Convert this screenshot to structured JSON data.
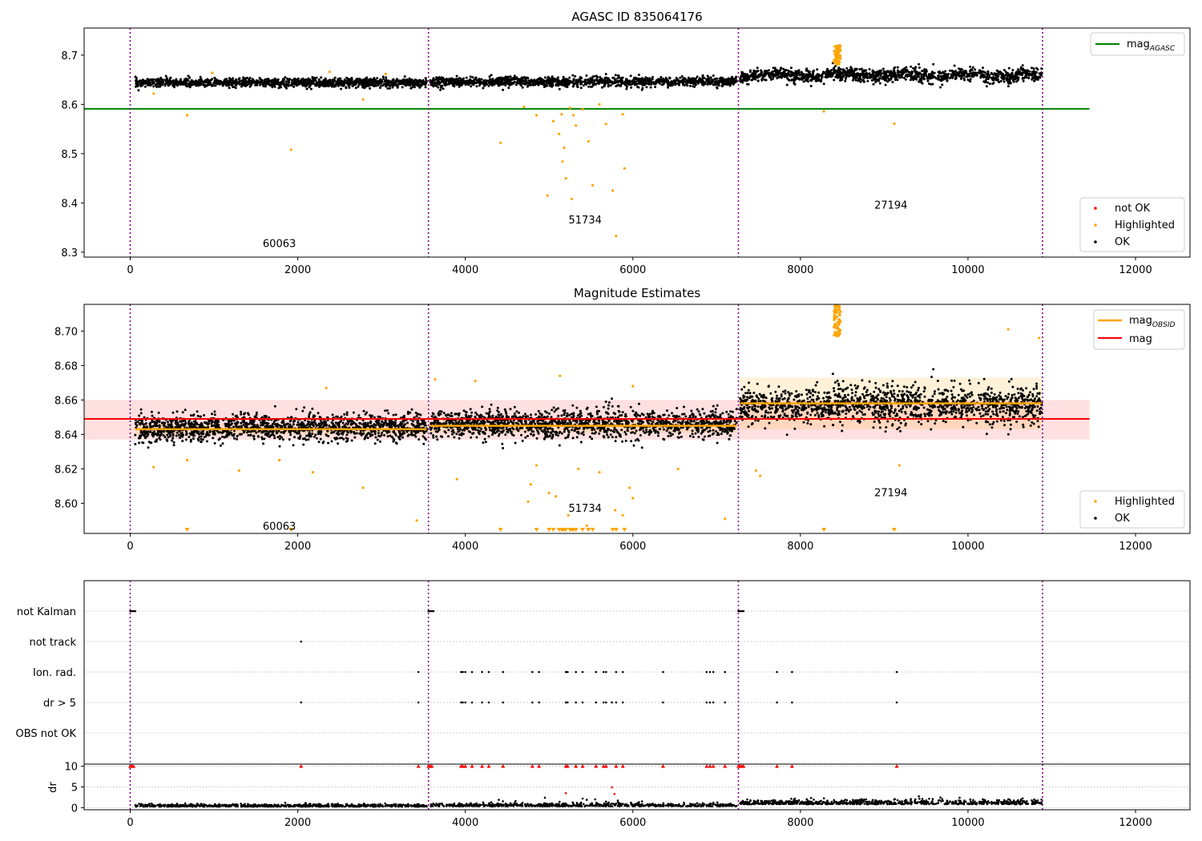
{
  "chart_data": [
    {
      "type": "scatter",
      "title": "AGASC ID 835064176",
      "xlim": [
        -550,
        12650
      ],
      "ylim": [
        8.29,
        8.755
      ],
      "xticks": [
        0,
        2000,
        4000,
        6000,
        8000,
        10000,
        12000
      ],
      "xtick_labels": [
        "0",
        "2000",
        "4000",
        "6000",
        "8000",
        "10000",
        "12000"
      ],
      "yticks": [
        8.3,
        8.4,
        8.5,
        8.6,
        8.7
      ],
      "ytick_labels": [
        "8.3",
        "8.4",
        "8.5",
        "8.6",
        "8.7"
      ],
      "vlines": [
        0,
        3560,
        7260,
        10890
      ],
      "segment_labels": [
        {
          "text": "60063",
          "x": 1780,
          "y": 8.317
        },
        {
          "text": "51734",
          "x": 5430,
          "y": 8.365
        },
        {
          "text": "27194",
          "x": 9080,
          "y": 8.395
        }
      ],
      "hline": {
        "name": "mag_AGASC",
        "y": 8.591,
        "x": [
          -550,
          11450
        ],
        "color": "#008000"
      },
      "segments": [
        {
          "x": [
            60,
            3540
          ],
          "mean": 8.644,
          "noise": 0.008,
          "drift": 0.0
        },
        {
          "x": [
            3580,
            7240
          ],
          "mean": 8.646,
          "noise": 0.009,
          "drift": 0.0
        },
        {
          "x": [
            7280,
            10880
          ],
          "mean": 8.659,
          "noise": 0.012,
          "drift": 0.003
        }
      ],
      "spike": {
        "x": [
          8400,
          8480
        ],
        "y": [
          8.68,
          8.72
        ]
      },
      "highlighted_points": [
        [
          280,
          8.622
        ],
        [
          680,
          8.578
        ],
        [
          1920,
          8.508
        ],
        [
          2780,
          8.61
        ],
        [
          4420,
          8.522
        ],
        [
          4700,
          8.595
        ],
        [
          4850,
          8.578
        ],
        [
          4980,
          8.415
        ],
        [
          5050,
          8.566
        ],
        [
          5120,
          8.54
        ],
        [
          5150,
          8.58
        ],
        [
          5160,
          8.484
        ],
        [
          5180,
          8.512
        ],
        [
          5200,
          8.45
        ],
        [
          5250,
          8.593
        ],
        [
          5270,
          8.408
        ],
        [
          5290,
          8.578
        ],
        [
          5320,
          8.557
        ],
        [
          5400,
          8.59
        ],
        [
          5470,
          8.525
        ],
        [
          5520,
          8.436
        ],
        [
          5600,
          8.6
        ],
        [
          5680,
          8.56
        ],
        [
          5760,
          8.425
        ],
        [
          5800,
          8.333
        ],
        [
          5880,
          8.58
        ],
        [
          5900,
          8.47
        ],
        [
          8280,
          8.586
        ],
        [
          9120,
          8.561
        ],
        [
          980,
          8.664
        ],
        [
          2380,
          8.666
        ],
        [
          3050,
          8.662
        ]
      ],
      "legend": {
        "position": "lower-right",
        "entries": [
          "not OK",
          "Highlighted",
          "OK"
        ]
      },
      "top_legend": {
        "position": "upper-right",
        "entries": [
          "mag_AGASC"
        ]
      },
      "colors": {
        "ok": "#000000",
        "highlighted": "#ffa500",
        "not_ok": "#ff0000",
        "vline": "#800080"
      }
    },
    {
      "type": "scatter",
      "title": "Magnitude Estimates",
      "xlim": [
        -550,
        12650
      ],
      "ylim": [
        8.5825,
        8.7155
      ],
      "xticks": [
        0,
        2000,
        4000,
        6000,
        8000,
        10000,
        12000
      ],
      "xtick_labels": [
        "0",
        "2000",
        "4000",
        "6000",
        "8000",
        "10000",
        "12000"
      ],
      "yticks": [
        8.6,
        8.62,
        8.64,
        8.66,
        8.68,
        8.7
      ],
      "ytick_labels": [
        "8.60",
        "8.62",
        "8.64",
        "8.66",
        "8.68",
        "8.70"
      ],
      "vlines": [
        0,
        3560,
        7260,
        10890
      ],
      "segment_labels": [
        {
          "text": "60063",
          "x": 1780,
          "y": 8.5865
        },
        {
          "text": "51734",
          "x": 5430,
          "y": 8.597
        },
        {
          "text": "27194",
          "x": 9080,
          "y": 8.606
        }
      ],
      "mag": {
        "name": "mag",
        "y": 8.649,
        "band": [
          8.637,
          8.66
        ],
        "x": [
          -550,
          11450
        ],
        "color": "#ff0000"
      },
      "mag_obsid": [
        {
          "x": [
            60,
            3540
          ],
          "y": 8.643,
          "band": [
            8.64,
            8.646
          ]
        },
        {
          "x": [
            3580,
            7240
          ],
          "y": 8.645,
          "band": [
            8.641,
            8.649
          ]
        },
        {
          "x": [
            7280,
            10880
          ],
          "y": 8.658,
          "band": [
            8.643,
            8.673
          ]
        }
      ],
      "segments": [
        {
          "x": [
            60,
            3540
          ],
          "mean": 8.644,
          "noise": 0.007,
          "drift": 0.0
        },
        {
          "x": [
            3580,
            7240
          ],
          "mean": 8.646,
          "noise": 0.0075,
          "drift": 0.0
        },
        {
          "x": [
            7280,
            10880
          ],
          "mean": 8.657,
          "noise": 0.01,
          "drift": 0.0
        }
      ],
      "spike": {
        "x": [
          8400,
          8480
        ],
        "y": [
          8.695,
          8.715
        ]
      },
      "highlighted_points": [
        [
          280,
          8.621
        ],
        [
          680,
          8.625
        ],
        [
          1300,
          8.619
        ],
        [
          1780,
          8.625
        ],
        [
          2180,
          8.618
        ],
        [
          2780,
          8.609
        ],
        [
          3420,
          8.59
        ],
        [
          3900,
          8.614
        ],
        [
          4750,
          8.601
        ],
        [
          4780,
          8.611
        ],
        [
          4850,
          8.622
        ],
        [
          5000,
          8.606
        ],
        [
          5080,
          8.604
        ],
        [
          5230,
          8.593
        ],
        [
          5350,
          8.62
        ],
        [
          5450,
          8.587
        ],
        [
          5600,
          8.618
        ],
        [
          5790,
          8.596
        ],
        [
          5880,
          8.593
        ],
        [
          5960,
          8.609
        ],
        [
          6000,
          8.603
        ],
        [
          6540,
          8.62
        ],
        [
          7100,
          8.591
        ],
        [
          7470,
          8.619
        ],
        [
          7520,
          8.616
        ],
        [
          9180,
          8.622
        ],
        [
          2340,
          8.667
        ],
        [
          3640,
          8.672
        ],
        [
          4120,
          8.671
        ],
        [
          5130,
          8.674
        ],
        [
          6000,
          8.668
        ],
        [
          10480,
          8.701
        ],
        [
          10850,
          8.696
        ]
      ],
      "clipped_low_points": [
        680,
        1920,
        4420,
        4850,
        5000,
        5050,
        5120,
        5150,
        5160,
        5180,
        5200,
        5250,
        5270,
        5290,
        5320,
        5400,
        5470,
        5520,
        5760,
        5800,
        5900,
        8280,
        9120
      ],
      "legend": {
        "position": "lower-right",
        "entries": [
          "Highlighted",
          "OK"
        ]
      },
      "top_legend": {
        "position": "upper-right",
        "entries": [
          "mag_OBSID",
          "mag"
        ]
      },
      "colors": {
        "ok": "#000000",
        "highlighted": "#ffa500",
        "mag_obsid": "#ffa500",
        "mag": "#ff0000",
        "vline": "#800080"
      }
    },
    {
      "type": "scatter",
      "title": "",
      "xlim": [
        -550,
        12650
      ],
      "categories": [
        "not Kalman",
        "not track",
        "Ion. rad.",
        "dr > 5",
        "OBS not OK"
      ],
      "flags": {
        "not Kalman": [
          0,
          20,
          40,
          60,
          3560,
          3580,
          3600,
          3620,
          7260,
          7280,
          7300,
          7320
        ],
        "not track": [
          2040
        ],
        "Ion. rad.": [
          3440,
          3950,
          3970,
          4000,
          4080,
          4200,
          4280,
          4450,
          4800,
          4880,
          5200,
          5220,
          5320,
          5400,
          5560,
          5650,
          5680,
          5800,
          5880,
          6360,
          6880,
          6920,
          6960,
          7100,
          7720,
          7900,
          9150
        ],
        "dr > 5": [
          2040,
          3440,
          3950,
          3970,
          4000,
          4080,
          4200,
          4280,
          4450,
          4800,
          4880,
          5200,
          5220,
          5320,
          5400,
          5560,
          5650,
          5680,
          5750,
          5800,
          5880,
          6360,
          6880,
          6920,
          6960,
          7100,
          7720,
          7900,
          9150
        ],
        "OBS not OK": []
      },
      "colors": {
        "point": "#000000",
        "vline": "#800080",
        "grid": "#b0b0b0"
      }
    },
    {
      "type": "scatter",
      "title": "",
      "ylabel": "dr",
      "xlim": [
        -550,
        12650
      ],
      "ylim": [
        -0.5,
        10.5
      ],
      "xticks": [
        0,
        2000,
        4000,
        6000,
        8000,
        10000,
        12000
      ],
      "xtick_labels": [
        "0",
        "2000",
        "4000",
        "6000",
        "8000",
        "10000",
        "12000"
      ],
      "yticks": [
        0,
        5,
        10
      ],
      "ytick_labels": [
        "0",
        "5",
        "10"
      ],
      "segments": [
        {
          "x": [
            60,
            3540
          ],
          "mean": 0.35,
          "spread": 0.5
        },
        {
          "x": [
            3580,
            7240
          ],
          "mean": 0.45,
          "spread": 0.6
        },
        {
          "x": [
            7280,
            10880
          ],
          "mean": 1.0,
          "spread": 0.9
        }
      ],
      "outliers": [
        [
          1850,
          1.2
        ],
        [
          4400,
          1.9
        ],
        [
          4600,
          1.6
        ],
        [
          4950,
          2.4
        ],
        [
          5200,
          3.5
        ],
        [
          5400,
          2.2
        ],
        [
          5450,
          1.9
        ],
        [
          5550,
          2.0
        ],
        [
          5750,
          4.9
        ],
        [
          5780,
          3.3
        ],
        [
          5820,
          1.7
        ],
        [
          9900,
          2.4
        ]
      ],
      "clipped_high": [
        0,
        20,
        40,
        3560,
        3580,
        3600,
        7260,
        7280,
        7300,
        7320,
        2040,
        3440,
        3950,
        3970,
        4000,
        4080,
        4200,
        4280,
        4450,
        4800,
        4880,
        5200,
        5220,
        5320,
        5400,
        5560,
        5650,
        5680,
        5800,
        5880,
        6360,
        6880,
        6920,
        6960,
        7100,
        7720,
        7900,
        9150
      ],
      "colors": {
        "point": "#000000",
        "flag": "#ff0000",
        "vline": "#800080",
        "grid": "#b0b0b0"
      }
    }
  ]
}
